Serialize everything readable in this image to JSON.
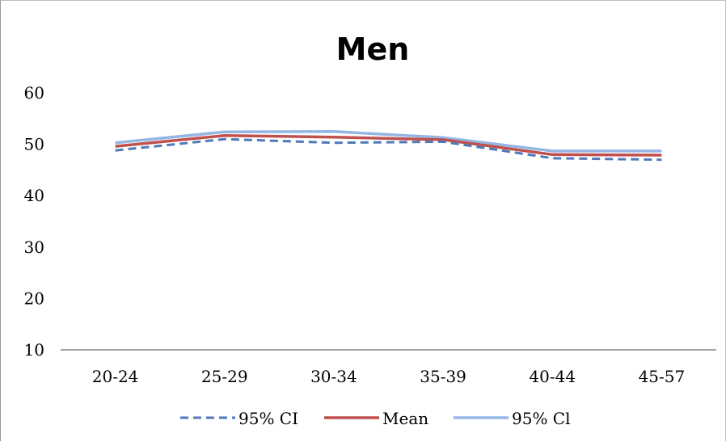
{
  "chart_data": {
    "type": "line",
    "title": "Men",
    "xlabel": "",
    "ylabel": "",
    "categories": [
      "20-24",
      "25-29",
      "30-34",
      "35-39",
      "40-44",
      "45-57"
    ],
    "ylim": [
      10,
      60
    ],
    "yticks": [
      10,
      20,
      30,
      40,
      50,
      60
    ],
    "grid": false,
    "legend_position": "bottom",
    "series": [
      {
        "name": "95% CI",
        "values": [
          48.8,
          51.0,
          50.3,
          50.5,
          47.3,
          47.0
        ],
        "color": "#4f7ab8",
        "dash": true
      },
      {
        "name": "Mean",
        "values": [
          49.6,
          51.7,
          51.4,
          50.9,
          48.0,
          47.9
        ],
        "color": "#c0504d",
        "dash": false
      },
      {
        "name": "95% Cl",
        "values": [
          50.3,
          52.4,
          52.5,
          51.3,
          48.7,
          48.7
        ],
        "color": "#94b6e3",
        "dash": false
      }
    ]
  }
}
